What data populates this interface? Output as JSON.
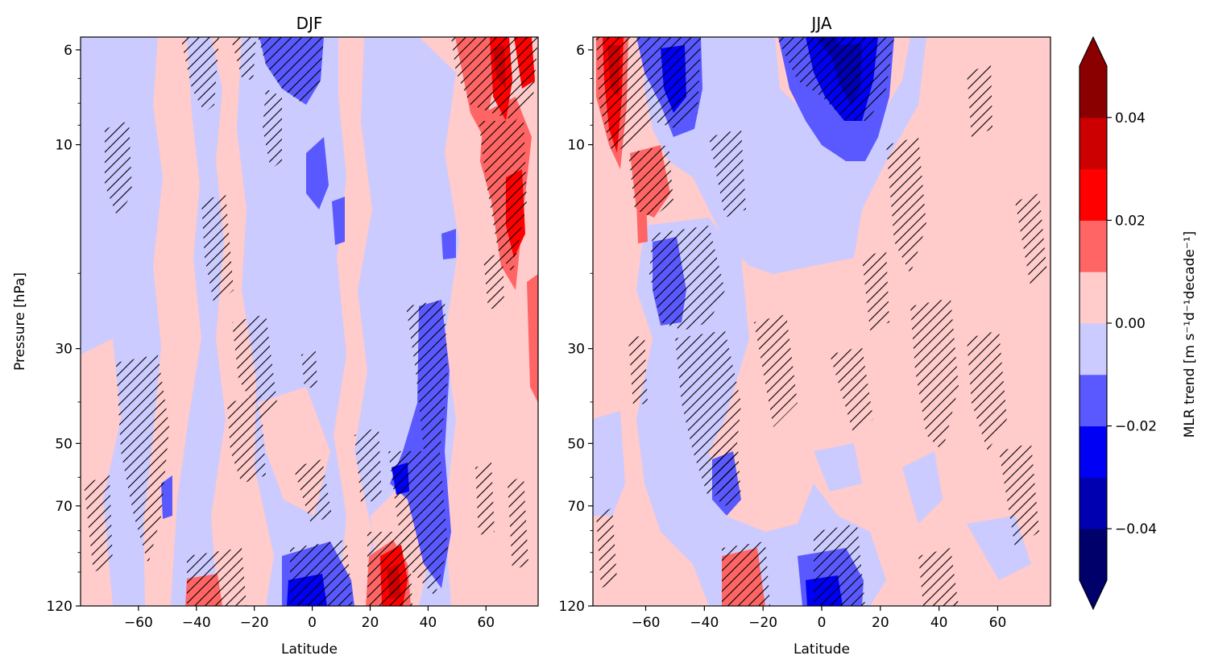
{
  "chart_data": [
    {
      "type": "heatmap",
      "title": "DJF",
      "xlabel": "Latitude",
      "ylabel": "Pressure [hPa]",
      "xlim": [
        -80,
        78
      ],
      "ylim": [
        120,
        5.6
      ],
      "y_scale": "log",
      "y_inverted": true,
      "xticks": [
        -60,
        -40,
        -20,
        0,
        20,
        40,
        60
      ],
      "xtick_labels": [
        "−60",
        "−40",
        "−20",
        "0",
        "20",
        "40",
        "60"
      ],
      "yticks": [
        6,
        10,
        30,
        50,
        70,
        120
      ],
      "ytick_labels": [
        "6",
        "10",
        "30",
        "50",
        "70",
        "120"
      ],
      "hatching": "significant trends",
      "features": [
        {
          "lat": -10,
          "p": 7,
          "value": -0.02,
          "hatched": true
        },
        {
          "lat": 0,
          "p": 115,
          "value": -0.025,
          "hatched": true
        },
        {
          "lat": 40,
          "p": 35,
          "value": -0.02,
          "hatched": true
        },
        {
          "lat": 35,
          "p": 60,
          "value": -0.02,
          "hatched": true
        },
        {
          "lat": 65,
          "p": 7,
          "value": 0.025,
          "hatched": true
        },
        {
          "lat": 62,
          "p": 14,
          "value": 0.02,
          "hatched": true
        },
        {
          "lat": 28,
          "p": 110,
          "value": 0.025,
          "hatched": true
        },
        {
          "lat": -38,
          "p": 115,
          "value": 0.015,
          "hatched": false
        },
        {
          "lat": -60,
          "p": 55,
          "value": -0.005,
          "hatched": true
        }
      ]
    },
    {
      "type": "heatmap",
      "title": "JJA",
      "xlabel": "Latitude",
      "ylabel": "",
      "xlim": [
        -78,
        78
      ],
      "ylim": [
        120,
        5.6
      ],
      "y_scale": "log",
      "y_inverted": true,
      "xticks": [
        -60,
        -40,
        -20,
        0,
        20,
        40,
        60
      ],
      "xtick_labels": [
        "−60",
        "−40",
        "−20",
        "0",
        "20",
        "40",
        "60"
      ],
      "yticks": [
        6,
        10,
        30,
        50,
        70,
        120
      ],
      "ytick_labels": [
        "6",
        "10",
        "30",
        "50",
        "70",
        "120"
      ],
      "hatching": "significant trends",
      "features": [
        {
          "lat": -72,
          "p": 7,
          "value": 0.03,
          "hatched": true
        },
        {
          "lat": -55,
          "p": 7,
          "value": -0.02,
          "hatched": true
        },
        {
          "lat": 10,
          "p": 7,
          "value": -0.03,
          "hatched": true
        },
        {
          "lat": -60,
          "p": 13,
          "value": 0.015,
          "hatched": true
        },
        {
          "lat": -50,
          "p": 25,
          "value": -0.015,
          "hatched": true
        },
        {
          "lat": -35,
          "p": 65,
          "value": -0.015,
          "hatched": true
        },
        {
          "lat": -30,
          "p": 110,
          "value": 0.015,
          "hatched": true
        },
        {
          "lat": 8,
          "p": 110,
          "value": -0.025,
          "hatched": true
        }
      ]
    }
  ],
  "colorbar": {
    "label": "MLR trend [m s⁻¹d⁻¹decade⁻¹]",
    "ticks": [
      0.04,
      0.02,
      0.0,
      -0.02,
      -0.04
    ],
    "tick_labels": [
      "0.04",
      "0.02",
      "0.00",
      "−0.02",
      "−0.04"
    ],
    "levels": [
      -0.05,
      -0.04,
      -0.03,
      -0.02,
      -0.01,
      0.0,
      0.01,
      0.02,
      0.03,
      0.04,
      0.05
    ],
    "colors": [
      "#00006b",
      "#0000b0",
      "#0000f5",
      "#5959ff",
      "#cbcbff",
      "#ffcbcb",
      "#ff6565",
      "#ff0000",
      "#cc0000",
      "#8a0000"
    ],
    "extend": "both"
  }
}
